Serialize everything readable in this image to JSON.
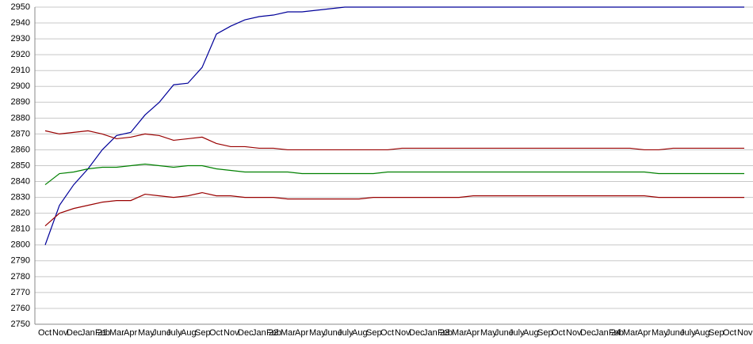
{
  "chart_data": {
    "type": "line",
    "categories": [
      "Oct",
      "Nov",
      "Dec",
      "Jan 21",
      "Feb",
      "Mar",
      "Apr",
      "May",
      "June",
      "July",
      "Aug",
      "Sep",
      "Oct",
      "Nov",
      "Dec",
      "Jan 22",
      "Feb",
      "Mar",
      "Apr",
      "May",
      "June",
      "July",
      "Aug",
      "Sep",
      "Oct",
      "Nov",
      "Dec",
      "Jan 23",
      "Feb",
      "Mar",
      "Apr",
      "May",
      "June",
      "July",
      "Aug",
      "Sep",
      "Oct",
      "Nov",
      "Dec",
      "Jan 24",
      "Feb",
      "Mar",
      "Apr",
      "May",
      "June",
      "July",
      "Aug",
      "Sep",
      "Oct",
      "Nov"
    ],
    "series": [
      {
        "color": "#000099",
        "values": [
          2800,
          2825,
          2838,
          2848,
          2860,
          2869,
          2871,
          2882,
          2890,
          2901,
          2902,
          2912,
          2933,
          2938,
          2942,
          2944,
          2945,
          2947,
          2947,
          2948,
          2949,
          2950,
          2950,
          2950,
          2950,
          2950,
          2950,
          2950,
          2950,
          2950,
          2950,
          2950,
          2950,
          2950,
          2950,
          2950,
          2950,
          2950,
          2950,
          2950,
          2950,
          2950,
          2950,
          2950,
          2950,
          2950,
          2950,
          2950,
          2950,
          2950
        ]
      },
      {
        "color": "#990000",
        "values": [
          2872,
          2870,
          2871,
          2872,
          2870,
          2867,
          2868,
          2870,
          2869,
          2866,
          2867,
          2868,
          2864,
          2862,
          2862,
          2861,
          2861,
          2860,
          2860,
          2860,
          2860,
          2860,
          2860,
          2860,
          2860,
          2861,
          2861,
          2861,
          2861,
          2861,
          2861,
          2861,
          2861,
          2861,
          2861,
          2861,
          2861,
          2861,
          2861,
          2861,
          2861,
          2861,
          2860,
          2860,
          2861,
          2861,
          2861,
          2861,
          2861,
          2861
        ]
      },
      {
        "color": "#008000",
        "values": [
          2838,
          2845,
          2846,
          2848,
          2849,
          2849,
          2850,
          2851,
          2850,
          2849,
          2850,
          2850,
          2848,
          2847,
          2846,
          2846,
          2846,
          2846,
          2845,
          2845,
          2845,
          2845,
          2845,
          2845,
          2846,
          2846,
          2846,
          2846,
          2846,
          2846,
          2846,
          2846,
          2846,
          2846,
          2846,
          2846,
          2846,
          2846,
          2846,
          2846,
          2846,
          2846,
          2846,
          2845,
          2845,
          2845,
          2845,
          2845,
          2845,
          2845
        ]
      },
      {
        "color": "#990000",
        "values": [
          2812,
          2820,
          2823,
          2825,
          2827,
          2828,
          2828,
          2832,
          2831,
          2830,
          2831,
          2833,
          2831,
          2831,
          2830,
          2830,
          2830,
          2829,
          2829,
          2829,
          2829,
          2829,
          2829,
          2830,
          2830,
          2830,
          2830,
          2830,
          2830,
          2830,
          2831,
          2831,
          2831,
          2831,
          2831,
          2831,
          2831,
          2831,
          2831,
          2831,
          2831,
          2831,
          2831,
          2830,
          2830,
          2830,
          2830,
          2830,
          2830,
          2830
        ]
      }
    ],
    "ylim": [
      2750,
      2950
    ],
    "yticks": [
      2750,
      2760,
      2770,
      2780,
      2790,
      2800,
      2810,
      2820,
      2830,
      2840,
      2850,
      2860,
      2870,
      2880,
      2890,
      2900,
      2910,
      2920,
      2930,
      2940,
      2950
    ],
    "grid": true
  }
}
